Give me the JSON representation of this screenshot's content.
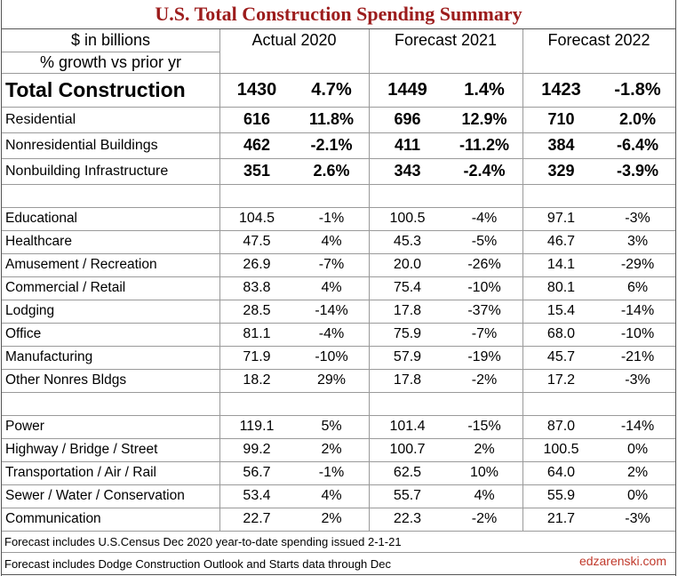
{
  "title": "U.S. Total Construction Spending Summary",
  "header": {
    "label_lines": [
      "$ in billions",
      "% growth vs prior yr"
    ],
    "columns": [
      "Actual 2020",
      "Forecast 2021",
      "Forecast 2022"
    ]
  },
  "table": {
    "summary_rows": [
      [
        "Total Construction",
        "1430",
        "4.7%",
        "1449",
        "1.4%",
        "1423",
        "-1.8%"
      ],
      [
        "Residential",
        "616",
        "11.8%",
        "696",
        "12.9%",
        "710",
        "2.0%"
      ],
      [
        "Nonresidential Buildings",
        "462",
        "-2.1%",
        "411",
        "-11.2%",
        "384",
        "-6.4%"
      ],
      [
        "Nonbuilding Infrastructure",
        "351",
        "2.6%",
        "343",
        "-2.4%",
        "329",
        "-3.9%"
      ]
    ],
    "nonresidential_rows": [
      [
        "Educational",
        "104.5",
        "-1%",
        "100.5",
        "-4%",
        "97.1",
        "-3%"
      ],
      [
        "Healthcare",
        "47.5",
        "4%",
        "45.3",
        "-5%",
        "46.7",
        "3%"
      ],
      [
        "Amusement / Recreation",
        "26.9",
        "-7%",
        "20.0",
        "-26%",
        "14.1",
        "-29%"
      ],
      [
        "Commercial / Retail",
        "83.8",
        "4%",
        "75.4",
        "-10%",
        "80.1",
        "6%"
      ],
      [
        "Lodging",
        "28.5",
        "-14%",
        "17.8",
        "-37%",
        "15.4",
        "-14%"
      ],
      [
        "Office",
        "81.1",
        "-4%",
        "75.9",
        "-7%",
        "68.0",
        "-10%"
      ],
      [
        "Manufacturing",
        "71.9",
        "-10%",
        "57.9",
        "-19%",
        "45.7",
        "-21%"
      ],
      [
        "Other Nonres Bldgs",
        "18.2",
        "29%",
        "17.8",
        "-2%",
        "17.2",
        "-3%"
      ]
    ],
    "nonbuilding_rows": [
      [
        "Power",
        "119.1",
        "5%",
        "101.4",
        "-15%",
        "87.0",
        "-14%"
      ],
      [
        "Highway / Bridge / Street",
        "99.2",
        "2%",
        "100.7",
        "2%",
        "100.5",
        "0%"
      ],
      [
        "Transportation / Air / Rail",
        "56.7",
        "-1%",
        "62.5",
        "10%",
        "64.0",
        "2%"
      ],
      [
        "Sewer / Water / Conservation",
        "53.4",
        "4%",
        "55.7",
        "4%",
        "55.9",
        "0%"
      ],
      [
        "Communication",
        "22.7",
        "2%",
        "22.3",
        "-2%",
        "21.7",
        "-3%"
      ]
    ]
  },
  "footer": {
    "notes": [
      "Forecast includes U.S.Census Dec 2020 year-to-date spending issued 2-1-21",
      "Forecast includes Dodge Construction Outlook and Starts data through Dec"
    ],
    "credit": "edzarenski.com"
  }
}
